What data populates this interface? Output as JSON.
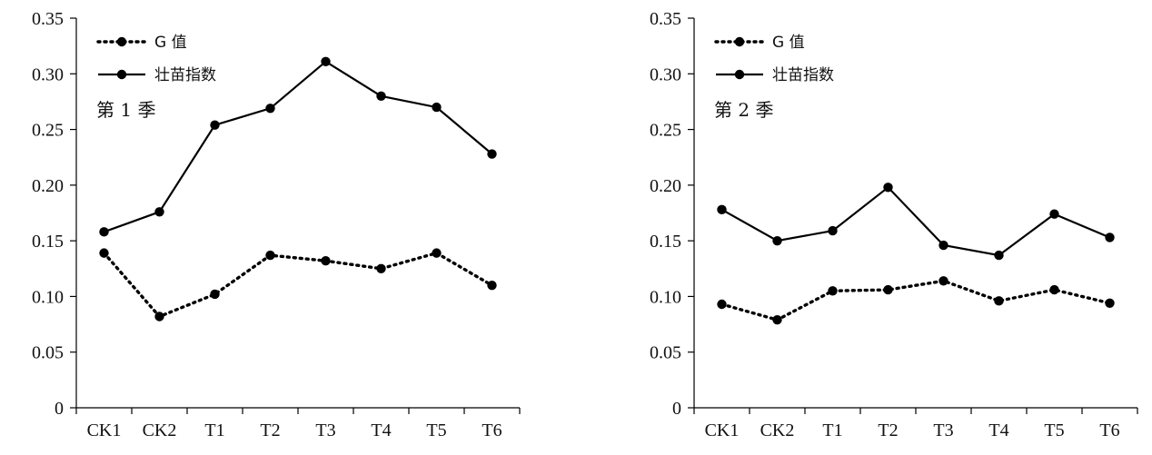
{
  "chart_data": [
    {
      "type": "line",
      "panel_label": "第 1 季",
      "categories": [
        "CK1",
        "CK2",
        "T1",
        "T2",
        "T3",
        "T4",
        "T5",
        "T6"
      ],
      "series": [
        {
          "name": "G 值",
          "style": "dotted",
          "values": [
            0.139,
            0.082,
            0.102,
            0.137,
            0.132,
            0.125,
            0.139,
            0.11
          ]
        },
        {
          "name": "壮苗指数",
          "style": "solid",
          "values": [
            0.158,
            0.176,
            0.254,
            0.269,
            0.311,
            0.28,
            0.27,
            0.228
          ]
        }
      ],
      "ylim": [
        0,
        0.35
      ],
      "yticks": [
        "0",
        "0.05",
        "0.10",
        "0.15",
        "0.20",
        "0.25",
        "0.30",
        "0.35"
      ],
      "legend_position": "top-left",
      "grid": false
    },
    {
      "type": "line",
      "panel_label": "第 2 季",
      "categories": [
        "CK1",
        "CK2",
        "T1",
        "T2",
        "T3",
        "T4",
        "T5",
        "T6"
      ],
      "series": [
        {
          "name": "G 值",
          "style": "dotted",
          "values": [
            0.093,
            0.079,
            0.105,
            0.106,
            0.114,
            0.096,
            0.106,
            0.094
          ]
        },
        {
          "name": "壮苗指数",
          "style": "solid",
          "values": [
            0.178,
            0.15,
            0.159,
            0.198,
            0.146,
            0.137,
            0.174,
            0.153
          ]
        }
      ],
      "ylim": [
        0,
        0.35
      ],
      "yticks": [
        "0",
        "0.05",
        "0.10",
        "0.15",
        "0.20",
        "0.25",
        "0.30",
        "0.35"
      ],
      "legend_position": "top-left",
      "grid": false
    }
  ]
}
